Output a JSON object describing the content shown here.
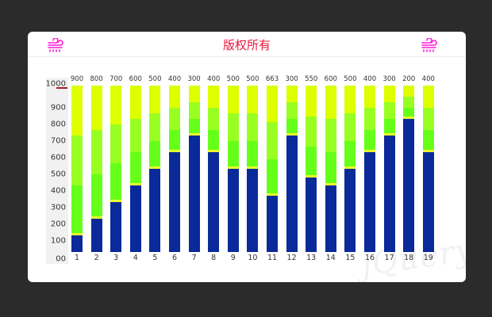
{
  "header": {
    "title": "版权所有",
    "left_icon": "wind-icon",
    "right_icon": "wind-icon",
    "icon_color": "#ff1ad9"
  },
  "colors": {
    "base": "#0b2a9a",
    "separator": "#e8ff2a",
    "green": "#66ff1a",
    "light_green": "#99ff22",
    "yellow": "#ddff00"
  },
  "watermark": "jQuery",
  "chart_data": {
    "type": "bar",
    "stacked": true,
    "title": "版权所有",
    "categories": [
      "1",
      "2",
      "3",
      "4",
      "5",
      "6",
      "7",
      "8",
      "9",
      "10",
      "11",
      "12",
      "13",
      "14",
      "15",
      "16",
      "17",
      "18",
      "19"
    ],
    "top_labels": [
      900,
      800,
      700,
      600,
      500,
      400,
      300,
      400,
      500,
      500,
      663,
      300,
      550,
      600,
      500,
      400,
      300,
      200,
      400
    ],
    "series": [
      {
        "name": "base",
        "color": "#0b2a9a",
        "values": [
          100,
          200,
          300,
          400,
          500,
          600,
          700,
          600,
          500,
          500,
          337,
          700,
          450,
          400,
          500,
          600,
          700,
          800,
          600
        ]
      },
      {
        "name": "green",
        "color": "#66ff1a",
        "values": [
          300,
          267,
          233,
          200,
          167,
          133,
          100,
          133,
          167,
          167,
          221,
          100,
          183,
          200,
          167,
          133,
          100,
          67,
          133
        ]
      },
      {
        "name": "light_green",
        "color": "#99ff22",
        "values": [
          300,
          267,
          233,
          200,
          167,
          133,
          100,
          133,
          167,
          167,
          221,
          100,
          183,
          200,
          167,
          133,
          100,
          67,
          133
        ]
      },
      {
        "name": "yellow",
        "color": "#ddff00",
        "values": [
          300,
          266,
          234,
          200,
          166,
          134,
          100,
          134,
          166,
          166,
          221,
          100,
          184,
          200,
          166,
          134,
          100,
          66,
          134
        ]
      }
    ],
    "yticks": [
      "00",
      "100",
      "200",
      "300",
      "400",
      "500",
      "600",
      "700",
      "800",
      "900",
      "1000"
    ],
    "ylim": [
      0,
      1000
    ],
    "xlabel": "",
    "ylabel": "",
    "grid": false,
    "legend": "none"
  }
}
